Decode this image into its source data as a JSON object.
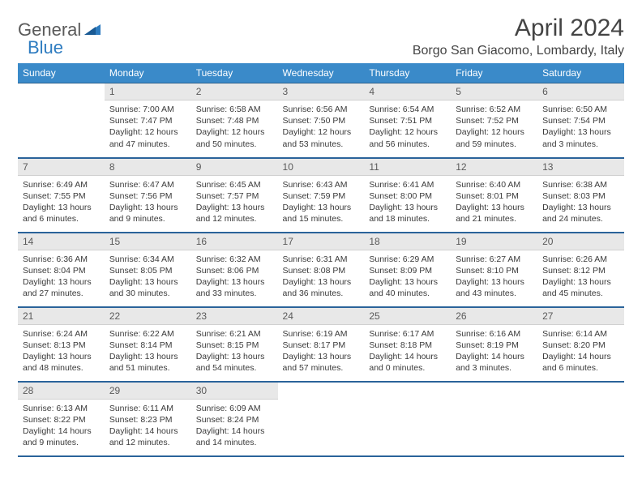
{
  "logo": {
    "word1": "General",
    "word2": "Blue"
  },
  "title": "April 2024",
  "location": "Borgo San Giacomo, Lombardy, Italy",
  "colors": {
    "header_bg": "#3a8ac9",
    "header_text": "#ffffff",
    "row_border": "#2a639a",
    "daynum_bg": "#e8e8e8",
    "daynum_text": "#5a5a5a",
    "body_text": "#3a3a3a",
    "logo_gray": "#5a5a5a",
    "logo_blue": "#2e7cc0",
    "title_color": "#444444",
    "background": "#ffffff"
  },
  "fonts": {
    "month_title_size": 30,
    "location_size": 16,
    "dayhead_size": 12,
    "daynum_size": 12,
    "body_size": 10.5
  },
  "dayNames": [
    "Sunday",
    "Monday",
    "Tuesday",
    "Wednesday",
    "Thursday",
    "Friday",
    "Saturday"
  ],
  "weeks": [
    [
      {
        "n": "",
        "sunrise": "",
        "sunset": "",
        "daylight": ""
      },
      {
        "n": "1",
        "sunrise": "Sunrise: 7:00 AM",
        "sunset": "Sunset: 7:47 PM",
        "daylight": "Daylight: 12 hours and 47 minutes."
      },
      {
        "n": "2",
        "sunrise": "Sunrise: 6:58 AM",
        "sunset": "Sunset: 7:48 PM",
        "daylight": "Daylight: 12 hours and 50 minutes."
      },
      {
        "n": "3",
        "sunrise": "Sunrise: 6:56 AM",
        "sunset": "Sunset: 7:50 PM",
        "daylight": "Daylight: 12 hours and 53 minutes."
      },
      {
        "n": "4",
        "sunrise": "Sunrise: 6:54 AM",
        "sunset": "Sunset: 7:51 PM",
        "daylight": "Daylight: 12 hours and 56 minutes."
      },
      {
        "n": "5",
        "sunrise": "Sunrise: 6:52 AM",
        "sunset": "Sunset: 7:52 PM",
        "daylight": "Daylight: 12 hours and 59 minutes."
      },
      {
        "n": "6",
        "sunrise": "Sunrise: 6:50 AM",
        "sunset": "Sunset: 7:54 PM",
        "daylight": "Daylight: 13 hours and 3 minutes."
      }
    ],
    [
      {
        "n": "7",
        "sunrise": "Sunrise: 6:49 AM",
        "sunset": "Sunset: 7:55 PM",
        "daylight": "Daylight: 13 hours and 6 minutes."
      },
      {
        "n": "8",
        "sunrise": "Sunrise: 6:47 AM",
        "sunset": "Sunset: 7:56 PM",
        "daylight": "Daylight: 13 hours and 9 minutes."
      },
      {
        "n": "9",
        "sunrise": "Sunrise: 6:45 AM",
        "sunset": "Sunset: 7:57 PM",
        "daylight": "Daylight: 13 hours and 12 minutes."
      },
      {
        "n": "10",
        "sunrise": "Sunrise: 6:43 AM",
        "sunset": "Sunset: 7:59 PM",
        "daylight": "Daylight: 13 hours and 15 minutes."
      },
      {
        "n": "11",
        "sunrise": "Sunrise: 6:41 AM",
        "sunset": "Sunset: 8:00 PM",
        "daylight": "Daylight: 13 hours and 18 minutes."
      },
      {
        "n": "12",
        "sunrise": "Sunrise: 6:40 AM",
        "sunset": "Sunset: 8:01 PM",
        "daylight": "Daylight: 13 hours and 21 minutes."
      },
      {
        "n": "13",
        "sunrise": "Sunrise: 6:38 AM",
        "sunset": "Sunset: 8:03 PM",
        "daylight": "Daylight: 13 hours and 24 minutes."
      }
    ],
    [
      {
        "n": "14",
        "sunrise": "Sunrise: 6:36 AM",
        "sunset": "Sunset: 8:04 PM",
        "daylight": "Daylight: 13 hours and 27 minutes."
      },
      {
        "n": "15",
        "sunrise": "Sunrise: 6:34 AM",
        "sunset": "Sunset: 8:05 PM",
        "daylight": "Daylight: 13 hours and 30 minutes."
      },
      {
        "n": "16",
        "sunrise": "Sunrise: 6:32 AM",
        "sunset": "Sunset: 8:06 PM",
        "daylight": "Daylight: 13 hours and 33 minutes."
      },
      {
        "n": "17",
        "sunrise": "Sunrise: 6:31 AM",
        "sunset": "Sunset: 8:08 PM",
        "daylight": "Daylight: 13 hours and 36 minutes."
      },
      {
        "n": "18",
        "sunrise": "Sunrise: 6:29 AM",
        "sunset": "Sunset: 8:09 PM",
        "daylight": "Daylight: 13 hours and 40 minutes."
      },
      {
        "n": "19",
        "sunrise": "Sunrise: 6:27 AM",
        "sunset": "Sunset: 8:10 PM",
        "daylight": "Daylight: 13 hours and 43 minutes."
      },
      {
        "n": "20",
        "sunrise": "Sunrise: 6:26 AM",
        "sunset": "Sunset: 8:12 PM",
        "daylight": "Daylight: 13 hours and 45 minutes."
      }
    ],
    [
      {
        "n": "21",
        "sunrise": "Sunrise: 6:24 AM",
        "sunset": "Sunset: 8:13 PM",
        "daylight": "Daylight: 13 hours and 48 minutes."
      },
      {
        "n": "22",
        "sunrise": "Sunrise: 6:22 AM",
        "sunset": "Sunset: 8:14 PM",
        "daylight": "Daylight: 13 hours and 51 minutes."
      },
      {
        "n": "23",
        "sunrise": "Sunrise: 6:21 AM",
        "sunset": "Sunset: 8:15 PM",
        "daylight": "Daylight: 13 hours and 54 minutes."
      },
      {
        "n": "24",
        "sunrise": "Sunrise: 6:19 AM",
        "sunset": "Sunset: 8:17 PM",
        "daylight": "Daylight: 13 hours and 57 minutes."
      },
      {
        "n": "25",
        "sunrise": "Sunrise: 6:17 AM",
        "sunset": "Sunset: 8:18 PM",
        "daylight": "Daylight: 14 hours and 0 minutes."
      },
      {
        "n": "26",
        "sunrise": "Sunrise: 6:16 AM",
        "sunset": "Sunset: 8:19 PM",
        "daylight": "Daylight: 14 hours and 3 minutes."
      },
      {
        "n": "27",
        "sunrise": "Sunrise: 6:14 AM",
        "sunset": "Sunset: 8:20 PM",
        "daylight": "Daylight: 14 hours and 6 minutes."
      }
    ],
    [
      {
        "n": "28",
        "sunrise": "Sunrise: 6:13 AM",
        "sunset": "Sunset: 8:22 PM",
        "daylight": "Daylight: 14 hours and 9 minutes."
      },
      {
        "n": "29",
        "sunrise": "Sunrise: 6:11 AM",
        "sunset": "Sunset: 8:23 PM",
        "daylight": "Daylight: 14 hours and 12 minutes."
      },
      {
        "n": "30",
        "sunrise": "Sunrise: 6:09 AM",
        "sunset": "Sunset: 8:24 PM",
        "daylight": "Daylight: 14 hours and 14 minutes."
      },
      {
        "n": "",
        "sunrise": "",
        "sunset": "",
        "daylight": ""
      },
      {
        "n": "",
        "sunrise": "",
        "sunset": "",
        "daylight": ""
      },
      {
        "n": "",
        "sunrise": "",
        "sunset": "",
        "daylight": ""
      },
      {
        "n": "",
        "sunrise": "",
        "sunset": "",
        "daylight": ""
      }
    ]
  ]
}
